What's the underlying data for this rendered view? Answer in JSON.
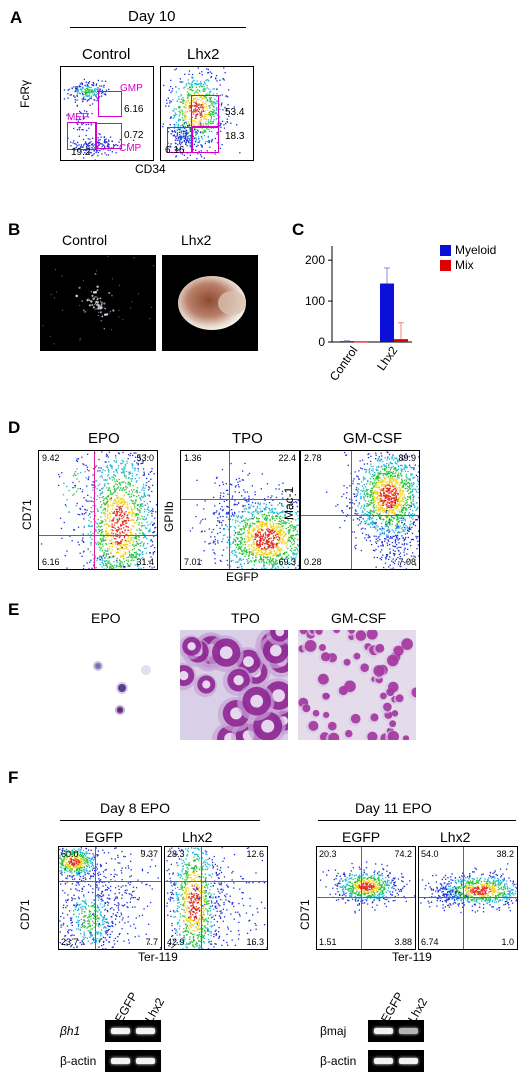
{
  "panels": {
    "A": {
      "label": "A",
      "day": "Day 10",
      "ctrl": "Control",
      "lhx2": "Lhx2",
      "ylabel": "FcRγ",
      "xlabel": "CD34",
      "gates": {
        "gmp": "GMP",
        "mep": "MEP",
        "cmp": "CMP"
      },
      "ctrl_values": {
        "gmp": "6.16",
        "cmp": "0.72",
        "mep": "19.2"
      },
      "lhx2_values": {
        "gmp": "53.4",
        "cmp": "18.3",
        "mep": "6.16"
      }
    },
    "B": {
      "label": "B",
      "ctrl": "Control",
      "lhx2": "Lhx2"
    },
    "C": {
      "label": "C"
    },
    "D": {
      "label": "D",
      "epo": "EPO",
      "tpo": "TPO",
      "gm": "GM-CSF",
      "y1": "CD71",
      "y2": "GPIIb",
      "y3": "Mac-1",
      "xlabel": "EGFP",
      "epo_q": {
        "ul": "9.42",
        "ur": "53.0",
        "ll": "6.16",
        "lr": "31.4"
      },
      "tpo_q": {
        "ul": "1.36",
        "ur": "22.4",
        "ll": "7.01",
        "lr": "69.3"
      },
      "gm_q": {
        "ul": "2.78",
        "ur": "89.9",
        "ll": "0.28",
        "lr": "7.08"
      }
    },
    "E": {
      "label": "E",
      "epo": "EPO",
      "tpo": "TPO",
      "gm": "GM-CSF"
    },
    "F": {
      "label": "F",
      "day8": "Day 8 EPO",
      "day11": "Day 11 EPO",
      "egfp": "EGFP",
      "lhx2": "Lhx2",
      "ylabel": "CD71",
      "xlabel": "Ter-119",
      "d8_egfp": {
        "ul": "60.0",
        "ur": "9.37",
        "ll": "23.7",
        "lr": "7.7"
      },
      "d8_lhx2": {
        "ul": "28.3",
        "ur": "12.6",
        "ll": "42.9",
        "lr": "16.3"
      },
      "d11_egfp": {
        "ul": "20.3",
        "ur": "74.2",
        "ll": "1.51",
        "lr": "3.88"
      },
      "d11_lhx2": {
        "ul": "54.0",
        "ur": "38.2",
        "ll": "6.74",
        "lr": "1.0"
      },
      "gel_left": {
        "row1": "βh1",
        "row2": "β-actin",
        "lane1": "EGFP",
        "lane2": "Lhx2"
      },
      "gel_right": {
        "row1": "βmaj",
        "row2": "β-actin",
        "lane1": "EGFP",
        "lane2": "Lhx2"
      }
    }
  },
  "chart_data": {
    "type": "bar",
    "categories": [
      "Control",
      "Lhx2"
    ],
    "series": [
      {
        "name": "Myeloid",
        "values": [
          2,
          143
        ],
        "error": [
          1,
          38
        ],
        "color": "#0a10d8"
      },
      {
        "name": "Mix",
        "values": [
          0,
          7
        ],
        "error": [
          0,
          40
        ],
        "color": "#e00000"
      }
    ],
    "yticks": [
      0,
      100,
      200
    ],
    "ylim": [
      0,
      220
    ],
    "legend": "right"
  }
}
